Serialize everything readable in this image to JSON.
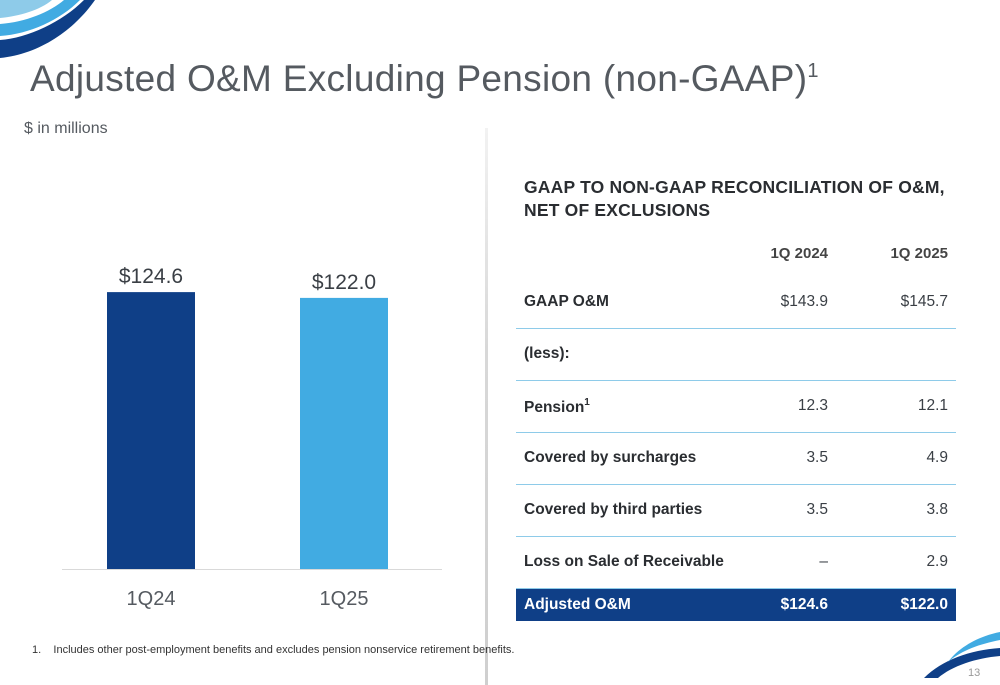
{
  "title": {
    "text": "Adjusted O&M Excluding Pension (non-GAAP)",
    "superscript": "1"
  },
  "unit_label": "$ in millions",
  "chart_data": {
    "type": "bar",
    "categories": [
      "1Q24",
      "1Q25"
    ],
    "values": [
      124.6,
      122.0
    ],
    "value_labels": [
      "$124.6",
      "$122.0"
    ],
    "bar_colors": [
      "#0f3f87",
      "#41abe2"
    ],
    "title": "",
    "xlabel": "",
    "ylabel": "",
    "ylim": [
      0,
      135
    ],
    "grid": false,
    "legend": "none"
  },
  "reconciliation": {
    "title": "GAAP TO NON-GAAP RECONCILIATION OF O&M, NET OF EXCLUSIONS",
    "columns": [
      "1Q 2024",
      "1Q 2025"
    ],
    "rows": [
      {
        "label": "GAAP O&M",
        "sup": "",
        "v1": "$143.9",
        "v2": "$145.7"
      },
      {
        "label": "(less):",
        "sup": "",
        "v1": "",
        "v2": ""
      },
      {
        "label": "Pension",
        "sup": "1",
        "v1": "12.3",
        "v2": "12.1"
      },
      {
        "label": "Covered by surcharges",
        "sup": "",
        "v1": "3.5",
        "v2": "4.9"
      },
      {
        "label": "Covered by third parties",
        "sup": "",
        "v1": "3.5",
        "v2": "3.8"
      },
      {
        "label": "Loss on Sale of Receivable",
        "sup": "",
        "v1": "–",
        "v2": "2.9"
      }
    ],
    "total": {
      "label": "Adjusted O&M",
      "v1": "$124.6",
      "v2": "$122.0"
    }
  },
  "footnote": "1.    Includes other post-employment benefits and excludes pension nonservice retirement benefits.",
  "page_number": "13",
  "colors": {
    "primary_navy": "#0f3f87",
    "accent_blue": "#41abe2",
    "title_gray": "#555a60",
    "rule_blue": "#8ecbe9"
  }
}
